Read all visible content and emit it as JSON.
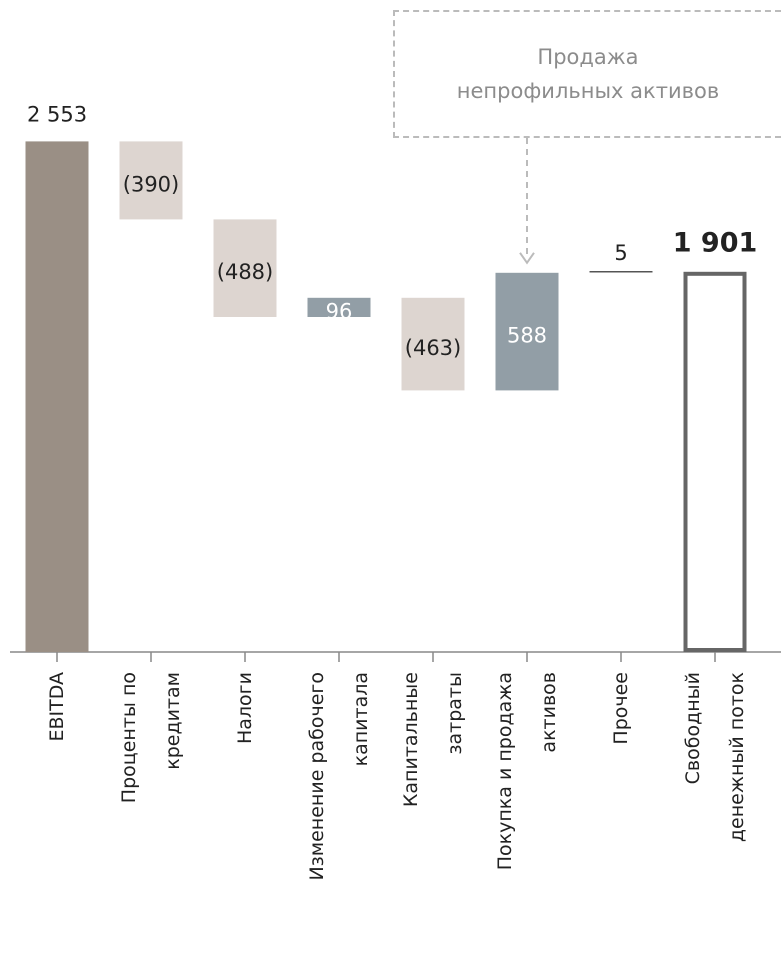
{
  "chart_data": {
    "type": "waterfall",
    "categories": [
      "EBITDA",
      "Проценты по\nкредитам",
      "Налоги",
      "Изменение рабочего\nкапитала",
      "Капитальные\nзатраты",
      "Покупка и продажа\nактивов",
      "Прочее",
      "Свободный\nденежный поток"
    ],
    "values": [
      2553,
      -390,
      -488,
      96,
      -463,
      588,
      5,
      1901
    ],
    "value_labels": [
      "2 553",
      "(390)",
      "(488)",
      "96",
      "(463)",
      "588",
      "5",
      "1 901"
    ],
    "total": [
      true,
      false,
      false,
      false,
      false,
      false,
      false,
      true
    ],
    "colors": [
      "#9a8f85",
      "#ddd5d0",
      "#ddd5d0",
      "#929ea6",
      "#ddd5d0",
      "#929ea6",
      "#555555",
      "#666666"
    ],
    "ylim": [
      0,
      2600
    ],
    "annotation": {
      "text": "Продажа\nнепрофильных активов",
      "target": 5
    }
  }
}
